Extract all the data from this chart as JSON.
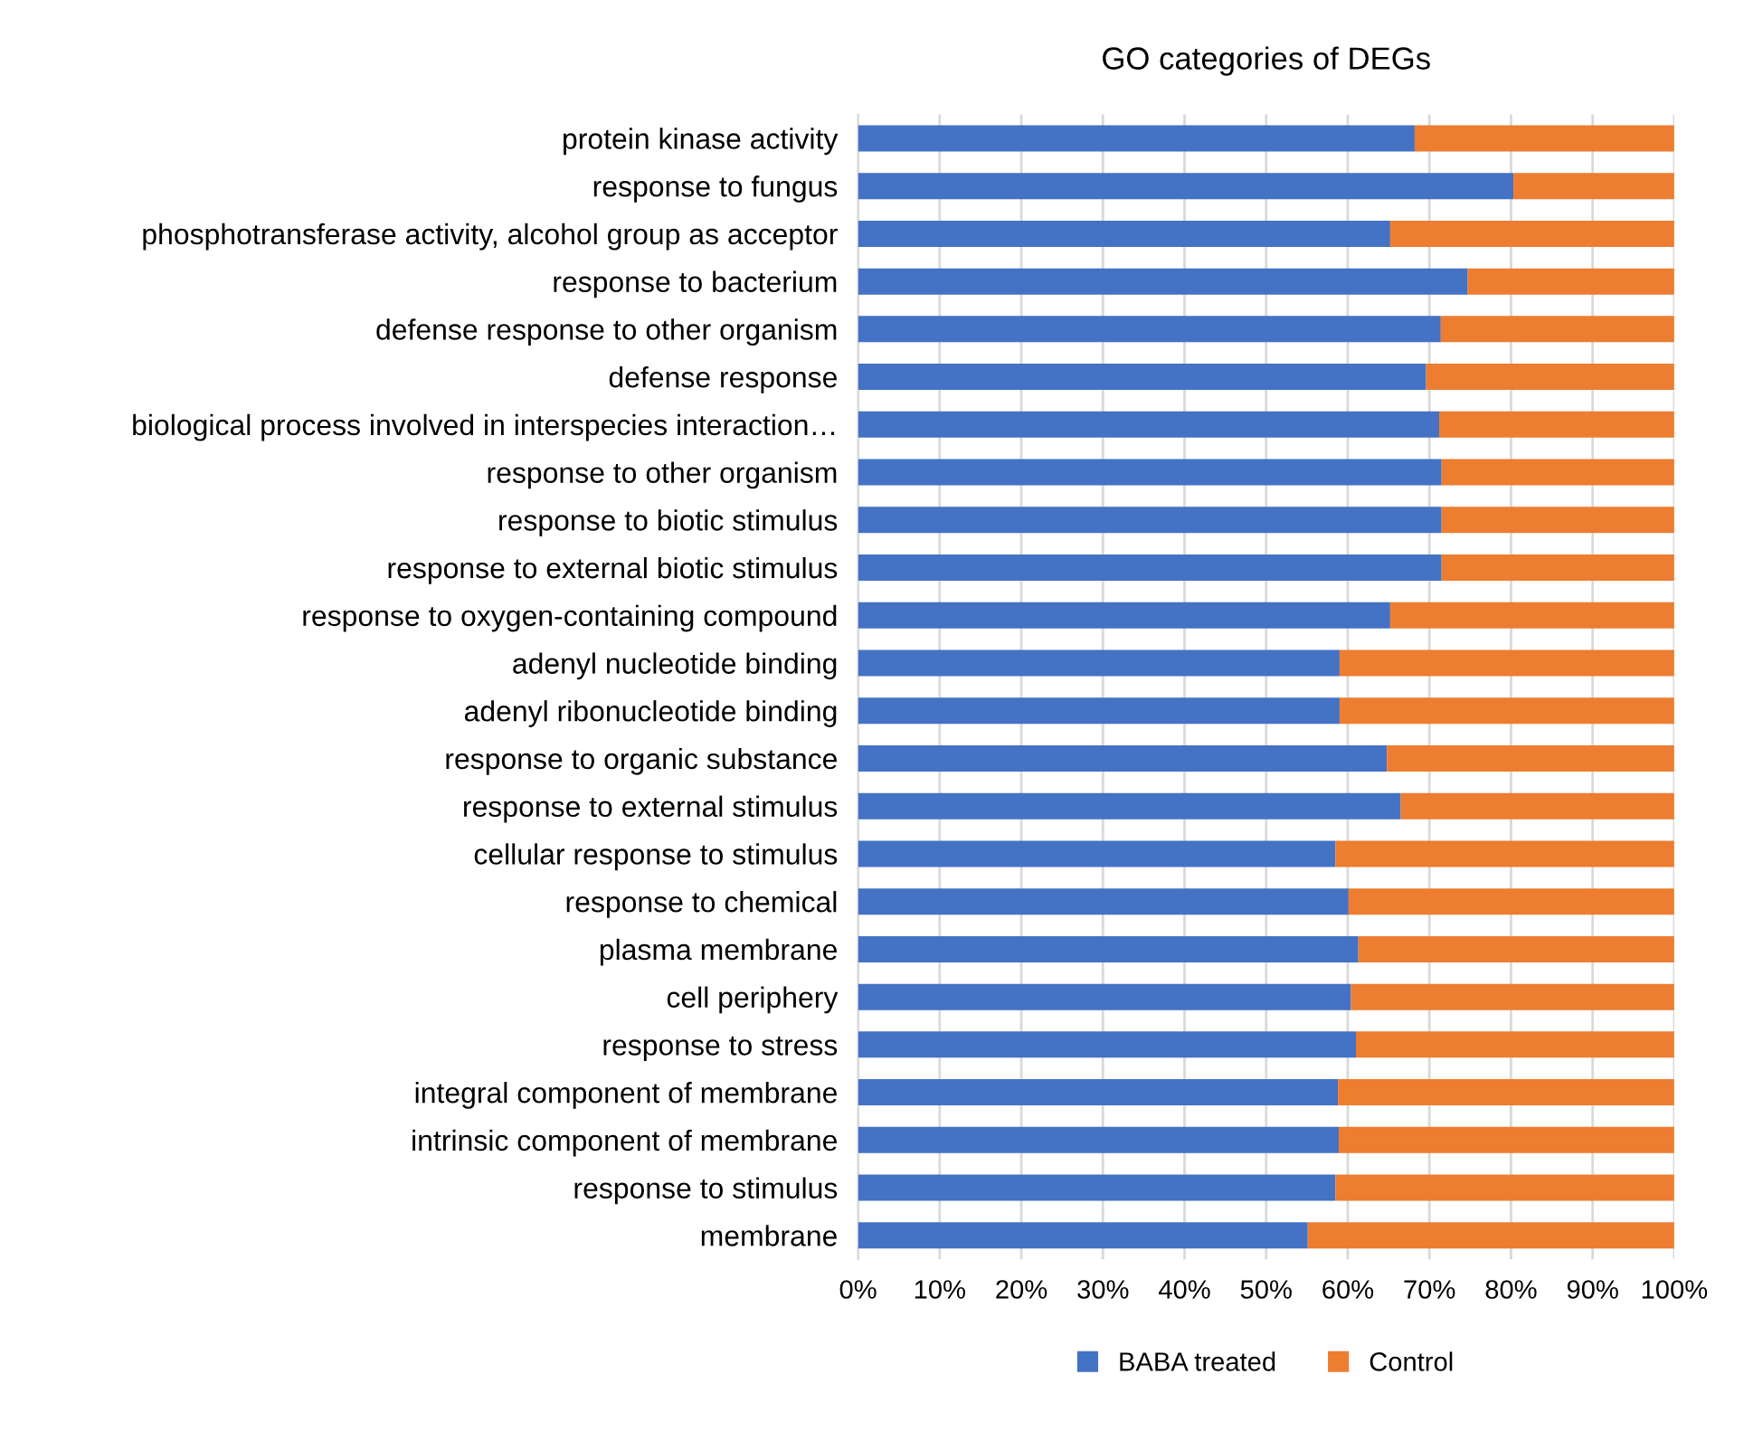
{
  "chart_data": {
    "type": "bar",
    "orientation": "horizontal",
    "stacked": true,
    "title": "GO categories of DEGs",
    "categories": [
      "protein kinase activity",
      "response to fungus",
      "phosphotransferase activity, alcohol group as acceptor",
      "response to bacterium",
      "defense response to other organism",
      "defense response",
      "biological process involved in interspecies interaction…",
      "response to other organism",
      "response to biotic stimulus",
      "response to external biotic stimulus",
      "response to oxygen-containing compound",
      "adenyl nucleotide binding",
      "adenyl ribonucleotide binding",
      "response to organic substance",
      "response to external stimulus",
      "cellular response to stimulus",
      "response to chemical",
      "plasma membrane",
      "cell periphery",
      "response to stress",
      "integral component of membrane",
      "intrinsic component of membrane",
      "response to stimulus",
      "membrane"
    ],
    "series": [
      {
        "name": "BABA treated",
        "color": "#4472c4",
        "values": [
          68.2,
          80.3,
          65.2,
          74.7,
          71.4,
          69.6,
          71.2,
          71.5,
          71.5,
          71.5,
          65.2,
          59.0,
          59.0,
          64.8,
          66.5,
          58.5,
          60.1,
          61.3,
          60.4,
          61.0,
          58.8,
          58.9,
          58.5,
          55.1
        ]
      },
      {
        "name": "Control",
        "color": "#ed7d31",
        "values": [
          31.8,
          19.7,
          34.8,
          25.3,
          28.6,
          30.4,
          28.8,
          28.5,
          28.5,
          28.5,
          34.8,
          41.0,
          41.0,
          35.2,
          33.5,
          41.5,
          39.9,
          38.7,
          39.6,
          39.0,
          41.2,
          41.1,
          41.5,
          44.9
        ]
      }
    ],
    "xlim": [
      0,
      100
    ],
    "xticks": [
      {
        "value": 0,
        "label": "0%"
      },
      {
        "value": 10,
        "label": "10%"
      },
      {
        "value": 20,
        "label": "20%"
      },
      {
        "value": 30,
        "label": "30%"
      },
      {
        "value": 40,
        "label": "40%"
      },
      {
        "value": 50,
        "label": "50%"
      },
      {
        "value": 60,
        "label": "60%"
      },
      {
        "value": 70,
        "label": "70%"
      },
      {
        "value": 80,
        "label": "80%"
      },
      {
        "value": 90,
        "label": "90%"
      },
      {
        "value": 100,
        "label": "100%"
      }
    ],
    "grid": "x",
    "legend": "bottom"
  }
}
